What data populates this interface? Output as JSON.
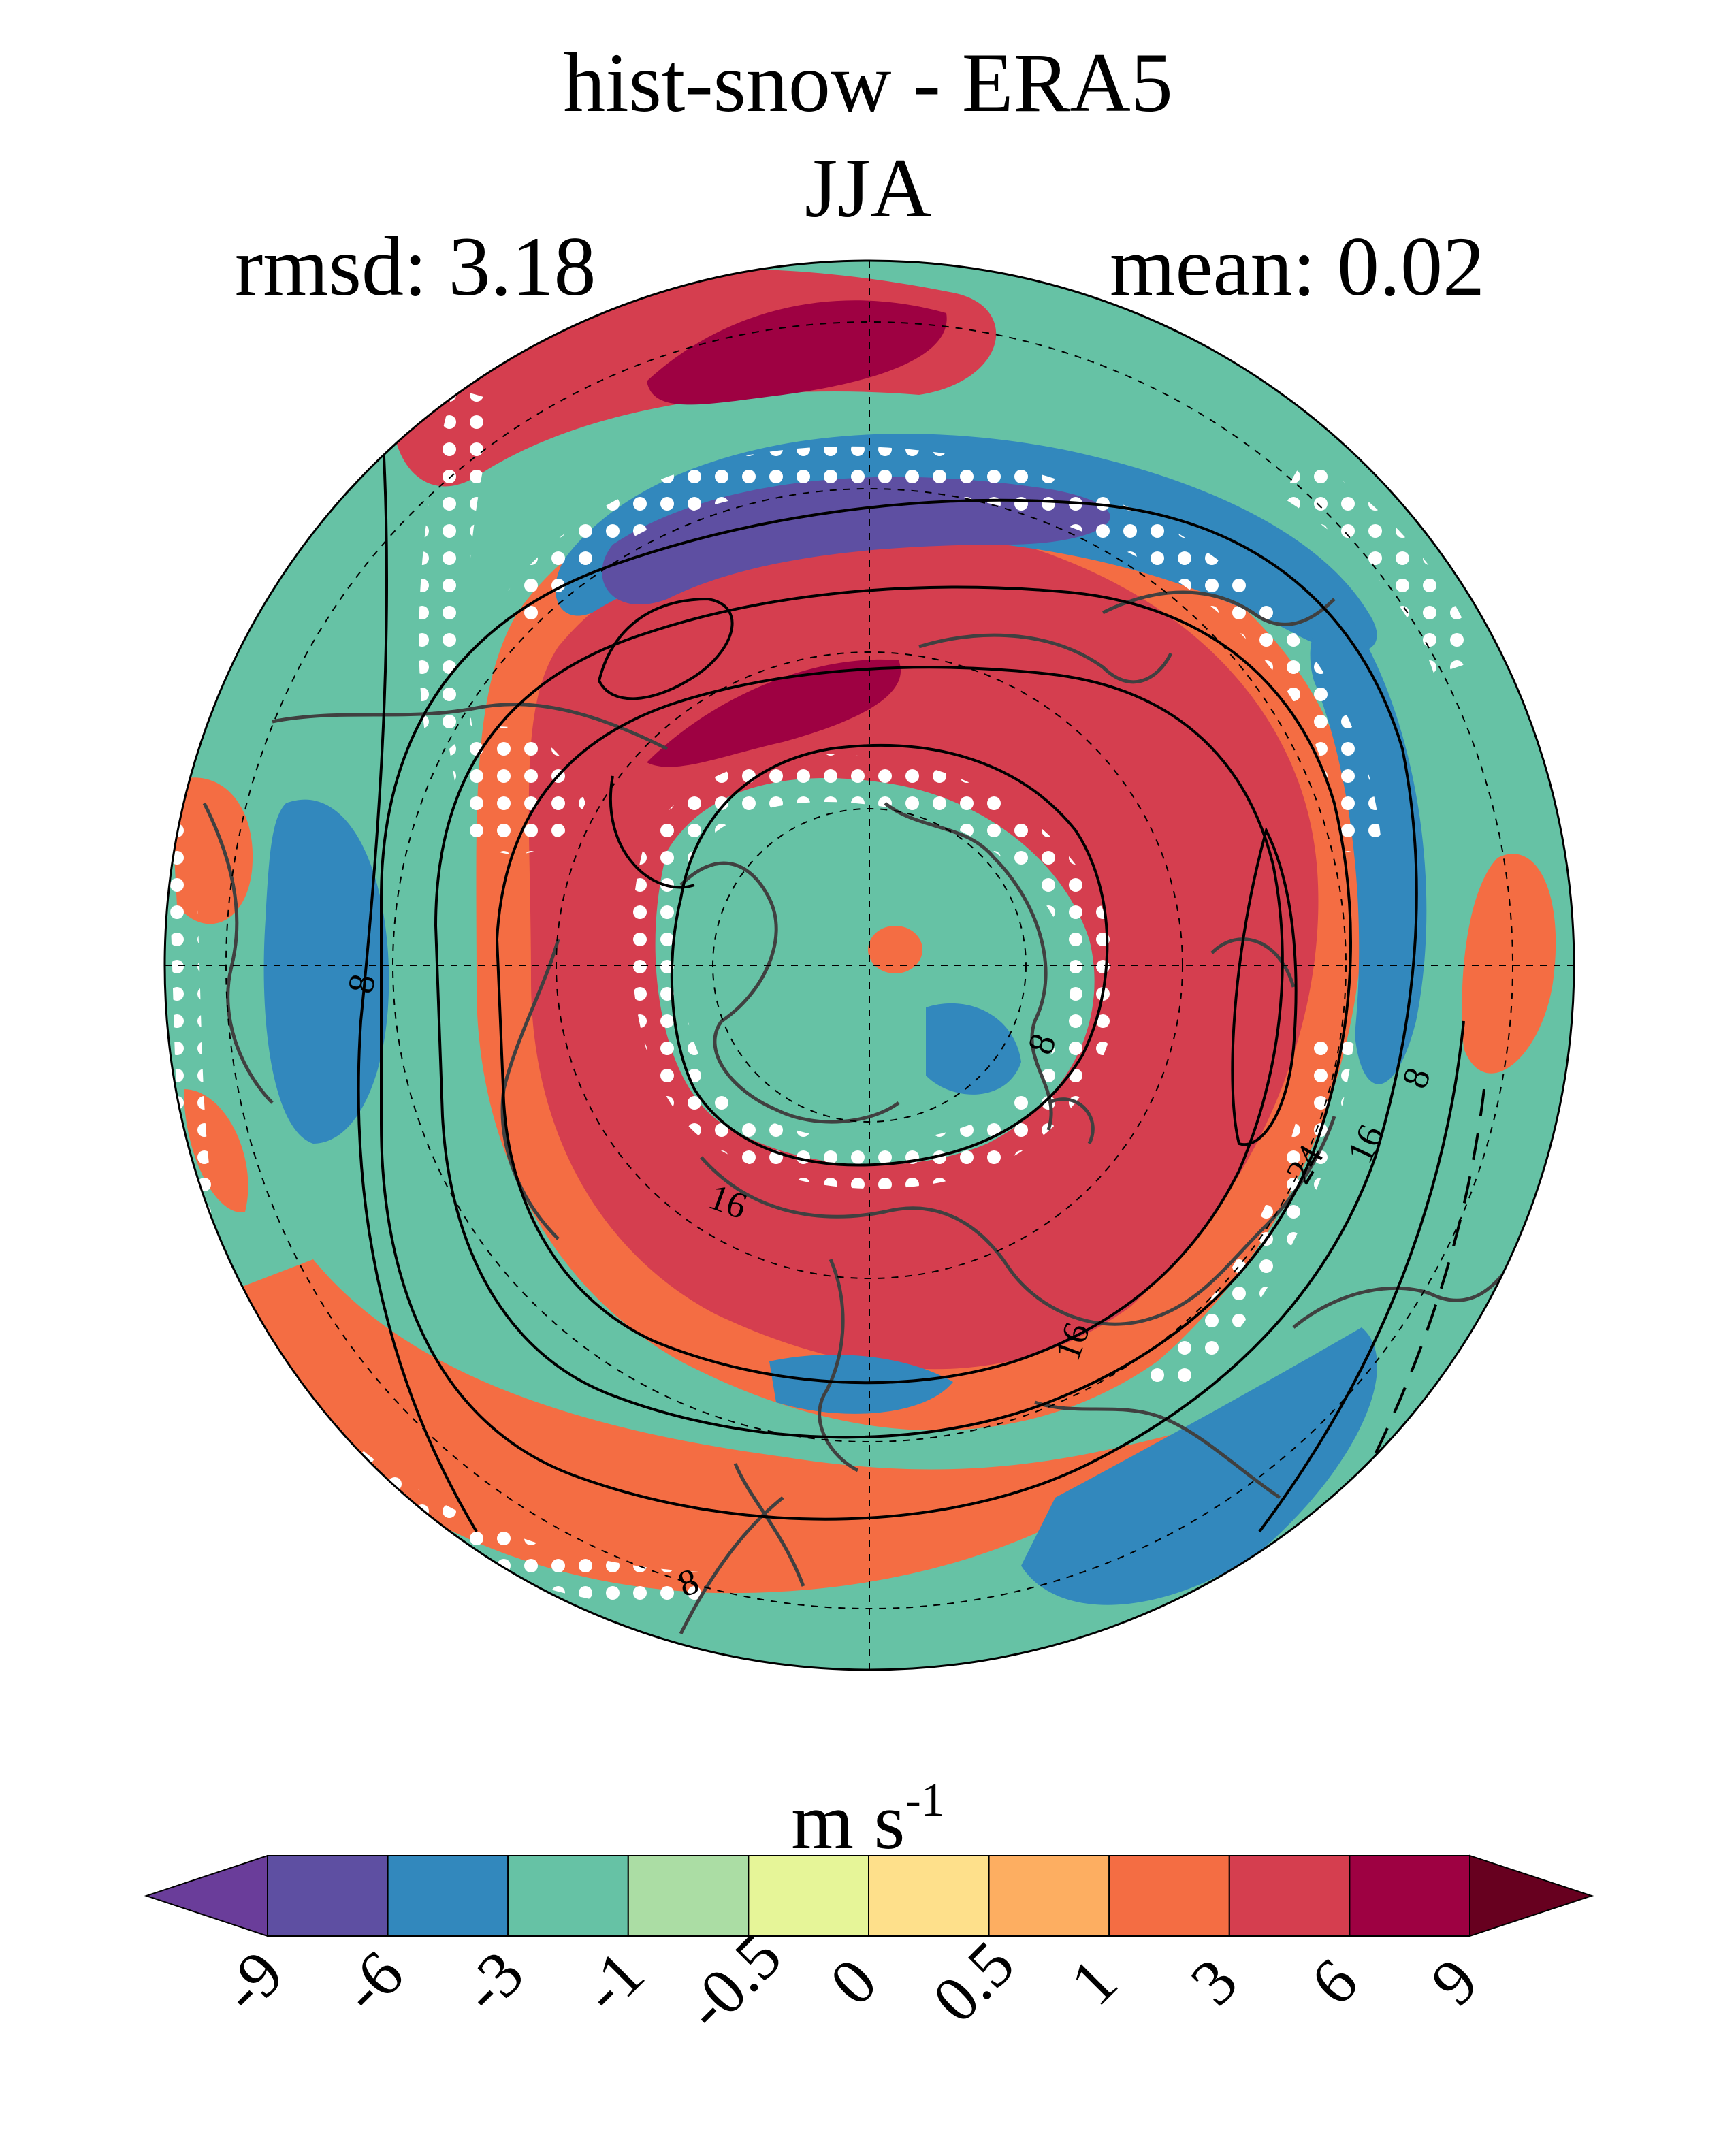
{
  "figure": {
    "title": "hist-snow - ERA5",
    "season": "JJA",
    "rmsd_label": "rmsd: 3.18",
    "mean_label": "mean: 0.02"
  },
  "map": {
    "projection": "north-polar-stereographic",
    "field": "zonal wind difference (hist-snow minus ERA5)",
    "contour_labels": [
      "8",
      "8",
      "8",
      "16",
      "16",
      "16",
      "24",
      "8"
    ],
    "stippling": "white dots mark non-significant difference"
  },
  "colorbar": {
    "units_text": "m s",
    "units_exp": "-1",
    "ticks": [
      "-9",
      "-6",
      "-3",
      "-1",
      "-0.5",
      "0",
      "0.5",
      "1",
      "3",
      "6",
      "9"
    ],
    "colors": [
      "#5e4fa2",
      "#3288bd",
      "#66c2a5",
      "#abdda4",
      "#e6f598",
      "#fee08b",
      "#fdae61",
      "#f46d43",
      "#d53e4f",
      "#9e0142"
    ],
    "under_color": "#6a3d9a",
    "over_color": "#67001f"
  }
}
